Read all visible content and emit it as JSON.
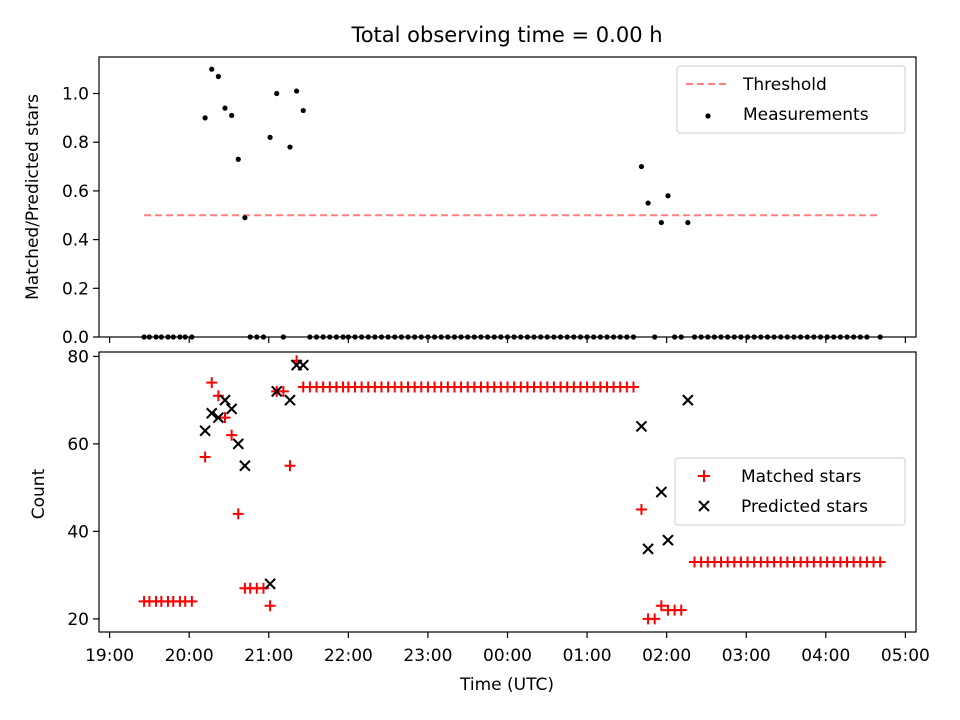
{
  "chart_data": {
    "title": "Total observing time = 0.00 h",
    "x_axis": {
      "label": "Time (UTC)",
      "range": [
        "19:00",
        "05:00"
      ],
      "ticks": [
        "19:00",
        "20:00",
        "21:00",
        "22:00",
        "23:00",
        "00:00",
        "01:00",
        "02:00",
        "03:00",
        "04:00",
        "05:00"
      ]
    },
    "top": {
      "type": "scatter",
      "ylabel": "Matched/Predicted stars",
      "ylim": [
        0,
        1.15
      ],
      "yticks": [
        "0.0",
        "0.2",
        "0.4",
        "0.6",
        "0.8",
        "1.0"
      ],
      "legend_position": "top-right",
      "threshold": {
        "name": "Threshold",
        "value": 0.5,
        "x_start": "19:26",
        "x_end": "04:41",
        "color": "#ff7f7f"
      },
      "measurements": {
        "name": "Measurements",
        "color": "#000000",
        "points": [
          [
            "19:26",
            0
          ],
          [
            "19:30",
            0
          ],
          [
            "19:35",
            0
          ],
          [
            "19:39",
            0
          ],
          [
            "19:44",
            0
          ],
          [
            "19:48",
            0
          ],
          [
            "19:53",
            0
          ],
          [
            "19:57",
            0
          ],
          [
            "20:02",
            0
          ],
          [
            "20:12",
            0.9
          ],
          [
            "20:17",
            1.1
          ],
          [
            "20:22",
            1.07
          ],
          [
            "20:27",
            0.94
          ],
          [
            "20:32",
            0.91
          ],
          [
            "20:37",
            0.73
          ],
          [
            "20:42",
            0.49
          ],
          [
            "20:46",
            0
          ],
          [
            "20:51",
            0
          ],
          [
            "20:56",
            0
          ],
          [
            "21:01",
            0.82
          ],
          [
            "21:06",
            1.0
          ],
          [
            "21:11",
            0
          ],
          [
            "21:16",
            0.78
          ],
          [
            "21:21",
            1.01
          ],
          [
            "21:26",
            0.93
          ],
          [
            "21:31",
            0
          ],
          [
            "21:36",
            0
          ],
          [
            "21:41",
            0
          ],
          [
            "21:46",
            0
          ],
          [
            "21:51",
            0
          ],
          [
            "21:56",
            0
          ],
          [
            "22:00",
            0
          ],
          [
            "22:05",
            0
          ],
          [
            "22:10",
            0
          ],
          [
            "22:15",
            0
          ],
          [
            "22:20",
            0
          ],
          [
            "22:25",
            0
          ],
          [
            "22:30",
            0
          ],
          [
            "22:35",
            0
          ],
          [
            "22:40",
            0
          ],
          [
            "22:45",
            0
          ],
          [
            "22:50",
            0
          ],
          [
            "22:55",
            0
          ],
          [
            "23:00",
            0
          ],
          [
            "23:05",
            0
          ],
          [
            "23:10",
            0
          ],
          [
            "23:15",
            0
          ],
          [
            "23:20",
            0
          ],
          [
            "23:25",
            0
          ],
          [
            "23:30",
            0
          ],
          [
            "23:35",
            0
          ],
          [
            "23:40",
            0
          ],
          [
            "23:45",
            0
          ],
          [
            "23:50",
            0
          ],
          [
            "23:55",
            0
          ],
          [
            "00:00",
            0
          ],
          [
            "00:05",
            0
          ],
          [
            "00:10",
            0
          ],
          [
            "00:15",
            0
          ],
          [
            "00:20",
            0
          ],
          [
            "00:25",
            0
          ],
          [
            "00:30",
            0
          ],
          [
            "00:35",
            0
          ],
          [
            "00:40",
            0
          ],
          [
            "00:45",
            0
          ],
          [
            "00:50",
            0
          ],
          [
            "00:55",
            0
          ],
          [
            "01:00",
            0
          ],
          [
            "01:05",
            0
          ],
          [
            "01:10",
            0
          ],
          [
            "01:15",
            0
          ],
          [
            "01:20",
            0
          ],
          [
            "01:25",
            0
          ],
          [
            "01:30",
            0
          ],
          [
            "01:35",
            0
          ],
          [
            "01:41",
            0.7
          ],
          [
            "01:46",
            0.55
          ],
          [
            "01:51",
            0
          ],
          [
            "01:56",
            0.47
          ],
          [
            "02:01",
            0.58
          ],
          [
            "02:06",
            0
          ],
          [
            "02:11",
            0
          ],
          [
            "02:16",
            0.47
          ],
          [
            "02:21",
            0
          ],
          [
            "02:26",
            0
          ],
          [
            "02:31",
            0
          ],
          [
            "02:36",
            0
          ],
          [
            "02:41",
            0
          ],
          [
            "02:46",
            0
          ],
          [
            "02:51",
            0
          ],
          [
            "02:56",
            0
          ],
          [
            "03:01",
            0
          ],
          [
            "03:06",
            0
          ],
          [
            "03:11",
            0
          ],
          [
            "03:16",
            0
          ],
          [
            "03:21",
            0
          ],
          [
            "03:26",
            0
          ],
          [
            "03:31",
            0
          ],
          [
            "03:36",
            0
          ],
          [
            "03:41",
            0
          ],
          [
            "03:46",
            0
          ],
          [
            "03:51",
            0
          ],
          [
            "03:56",
            0
          ],
          [
            "04:01",
            0
          ],
          [
            "04:06",
            0
          ],
          [
            "04:11",
            0
          ],
          [
            "04:16",
            0
          ],
          [
            "04:21",
            0
          ],
          [
            "04:26",
            0
          ],
          [
            "04:31",
            0
          ],
          [
            "04:41",
            0
          ]
        ]
      }
    },
    "bottom": {
      "type": "scatter",
      "ylabel": "Count",
      "ylim": [
        17,
        81
      ],
      "yticks": [
        "20",
        "40",
        "60",
        "80"
      ],
      "legend_position": "center-right",
      "matched": {
        "name": "Matched stars",
        "color": "#ff0000",
        "points": [
          [
            "19:26",
            24
          ],
          [
            "19:30",
            24
          ],
          [
            "19:35",
            24
          ],
          [
            "19:39",
            24
          ],
          [
            "19:44",
            24
          ],
          [
            "19:48",
            24
          ],
          [
            "19:53",
            24
          ],
          [
            "19:57",
            24
          ],
          [
            "20:02",
            24
          ],
          [
            "20:12",
            57
          ],
          [
            "20:17",
            74
          ],
          [
            "20:22",
            71
          ],
          [
            "20:27",
            66
          ],
          [
            "20:32",
            62
          ],
          [
            "20:37",
            44
          ],
          [
            "20:42",
            27
          ],
          [
            "20:46",
            27
          ],
          [
            "20:51",
            27
          ],
          [
            "20:56",
            27
          ],
          [
            "21:01",
            23
          ],
          [
            "21:06",
            72
          ],
          [
            "21:11",
            72
          ],
          [
            "21:16",
            55
          ],
          [
            "21:21",
            79
          ],
          [
            "21:26",
            73
          ],
          [
            "21:31",
            73
          ],
          [
            "21:36",
            73
          ],
          [
            "21:41",
            73
          ],
          [
            "21:46",
            73
          ],
          [
            "21:51",
            73
          ],
          [
            "21:56",
            73
          ],
          [
            "22:00",
            73
          ],
          [
            "22:05",
            73
          ],
          [
            "22:10",
            73
          ],
          [
            "22:15",
            73
          ],
          [
            "22:20",
            73
          ],
          [
            "22:25",
            73
          ],
          [
            "22:30",
            73
          ],
          [
            "22:35",
            73
          ],
          [
            "22:40",
            73
          ],
          [
            "22:45",
            73
          ],
          [
            "22:50",
            73
          ],
          [
            "22:55",
            73
          ],
          [
            "23:00",
            73
          ],
          [
            "23:05",
            73
          ],
          [
            "23:10",
            73
          ],
          [
            "23:15",
            73
          ],
          [
            "23:20",
            73
          ],
          [
            "23:25",
            73
          ],
          [
            "23:30",
            73
          ],
          [
            "23:35",
            73
          ],
          [
            "23:40",
            73
          ],
          [
            "23:45",
            73
          ],
          [
            "23:50",
            73
          ],
          [
            "23:55",
            73
          ],
          [
            "00:00",
            73
          ],
          [
            "00:05",
            73
          ],
          [
            "00:10",
            73
          ],
          [
            "00:15",
            73
          ],
          [
            "00:20",
            73
          ],
          [
            "00:25",
            73
          ],
          [
            "00:30",
            73
          ],
          [
            "00:35",
            73
          ],
          [
            "00:40",
            73
          ],
          [
            "00:45",
            73
          ],
          [
            "00:50",
            73
          ],
          [
            "00:55",
            73
          ],
          [
            "01:00",
            73
          ],
          [
            "01:05",
            73
          ],
          [
            "01:10",
            73
          ],
          [
            "01:15",
            73
          ],
          [
            "01:20",
            73
          ],
          [
            "01:25",
            73
          ],
          [
            "01:30",
            73
          ],
          [
            "01:35",
            73
          ],
          [
            "01:41",
            45
          ],
          [
            "01:46",
            20
          ],
          [
            "01:51",
            20
          ],
          [
            "01:56",
            23
          ],
          [
            "02:01",
            22
          ],
          [
            "02:06",
            22
          ],
          [
            "02:11",
            22
          ],
          [
            "02:21",
            33
          ],
          [
            "02:26",
            33
          ],
          [
            "02:31",
            33
          ],
          [
            "02:36",
            33
          ],
          [
            "02:41",
            33
          ],
          [
            "02:46",
            33
          ],
          [
            "02:51",
            33
          ],
          [
            "02:56",
            33
          ],
          [
            "03:01",
            33
          ],
          [
            "03:06",
            33
          ],
          [
            "03:11",
            33
          ],
          [
            "03:16",
            33
          ],
          [
            "03:21",
            33
          ],
          [
            "03:26",
            33
          ],
          [
            "03:31",
            33
          ],
          [
            "03:36",
            33
          ],
          [
            "03:41",
            33
          ],
          [
            "03:46",
            33
          ],
          [
            "03:51",
            33
          ],
          [
            "03:56",
            33
          ],
          [
            "04:01",
            33
          ],
          [
            "04:06",
            33
          ],
          [
            "04:11",
            33
          ],
          [
            "04:16",
            33
          ],
          [
            "04:21",
            33
          ],
          [
            "04:26",
            33
          ],
          [
            "04:31",
            33
          ],
          [
            "04:36",
            33
          ],
          [
            "04:41",
            33
          ]
        ]
      },
      "predicted": {
        "name": "Predicted stars",
        "color": "#000000",
        "points": [
          [
            "20:12",
            63
          ],
          [
            "20:17",
            67
          ],
          [
            "20:22",
            66
          ],
          [
            "20:27",
            70
          ],
          [
            "20:32",
            68
          ],
          [
            "20:37",
            60
          ],
          [
            "20:42",
            55
          ],
          [
            "21:01",
            28
          ],
          [
            "21:06",
            72
          ],
          [
            "21:16",
            70
          ],
          [
            "21:21",
            78
          ],
          [
            "21:26",
            78
          ],
          [
            "01:41",
            64
          ],
          [
            "01:46",
            36
          ],
          [
            "01:56",
            49
          ],
          [
            "02:01",
            38
          ],
          [
            "02:16",
            70
          ]
        ]
      }
    }
  }
}
